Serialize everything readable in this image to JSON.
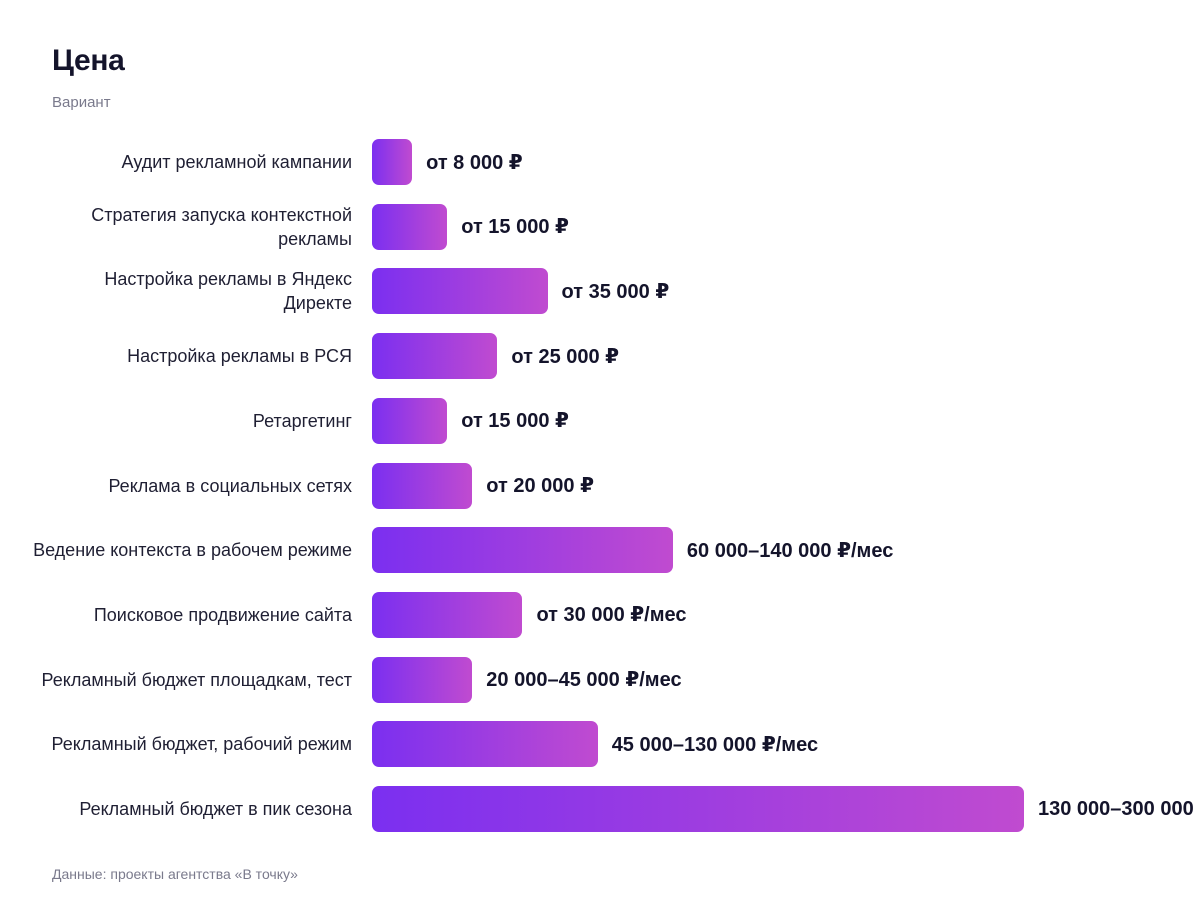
{
  "title": "Цена",
  "subtitle": "Вариант",
  "source": "Данные: проекты агентства «В точку»",
  "colors": {
    "bar_start": "#7b2ff0",
    "bar_end": "#c04bd0",
    "text": "#14142b",
    "muted": "#7a7a8c"
  },
  "chart_data": {
    "type": "bar",
    "orientation": "horizontal",
    "categories": [
      "Аудит рекламной кампании",
      "Стратегия запуска контекстной рекламы",
      "Настройка рекламы в Яндекс Директе",
      "Настройка рекламы в РСЯ",
      "Ретаргетинг",
      "Реклама в социальных сетях",
      "Ведение контекста в рабочем режиме",
      "Поисковое продвижение сайта",
      "Рекламный бюджет площадкам, тест",
      "Рекламный бюджет, рабочий режим",
      "Рекламный бюджет в пик сезона"
    ],
    "values": [
      8000,
      15000,
      35000,
      25000,
      15000,
      20000,
      60000,
      30000,
      20000,
      45000,
      130000
    ],
    "labels": [
      "от 8 000 ₽",
      "от 15 000 ₽",
      "от 35 000 ₽",
      "от 25 000 ₽",
      "от 15 000 ₽",
      "от 20 000 ₽",
      "60 000–140 000 ₽/мес",
      "от 30 000 ₽/мес",
      "20 000–45 000 ₽/мес",
      "45 000–130 000 ₽/мес",
      "130 000–300 000"
    ],
    "xlim": [
      0,
      130000
    ],
    "grid": false
  }
}
